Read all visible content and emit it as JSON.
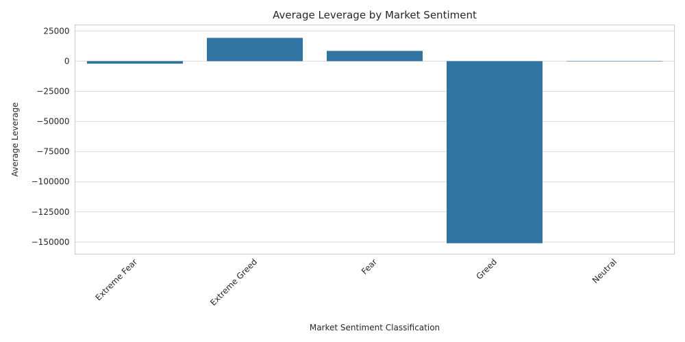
{
  "chart_data": {
    "type": "bar",
    "title": "Average Leverage by Market Sentiment",
    "xlabel": "Market Sentiment Classification",
    "ylabel": "Average Leverage",
    "categories": [
      "Extreme Fear",
      "Extreme Greed",
      "Fear",
      "Greed",
      "Neutral"
    ],
    "values": [
      -2100,
      19300,
      8500,
      -151000,
      -300
    ],
    "ylim": [
      -160000,
      30000
    ],
    "yticks": [
      25000,
      0,
      -25000,
      -50000,
      -75000,
      -100000,
      -125000,
      -150000
    ],
    "ytick_labels": [
      "25000",
      "0",
      "−25000",
      "−50000",
      "−75000",
      "−100000",
      "−125000",
      "−150000"
    ],
    "xtick_rotation": 45,
    "grid": true,
    "legend": "none",
    "colors": {
      "bar": "#3274a1",
      "grid": "#d9d9d9",
      "frame": "#cccccc",
      "text": "#262626"
    }
  }
}
